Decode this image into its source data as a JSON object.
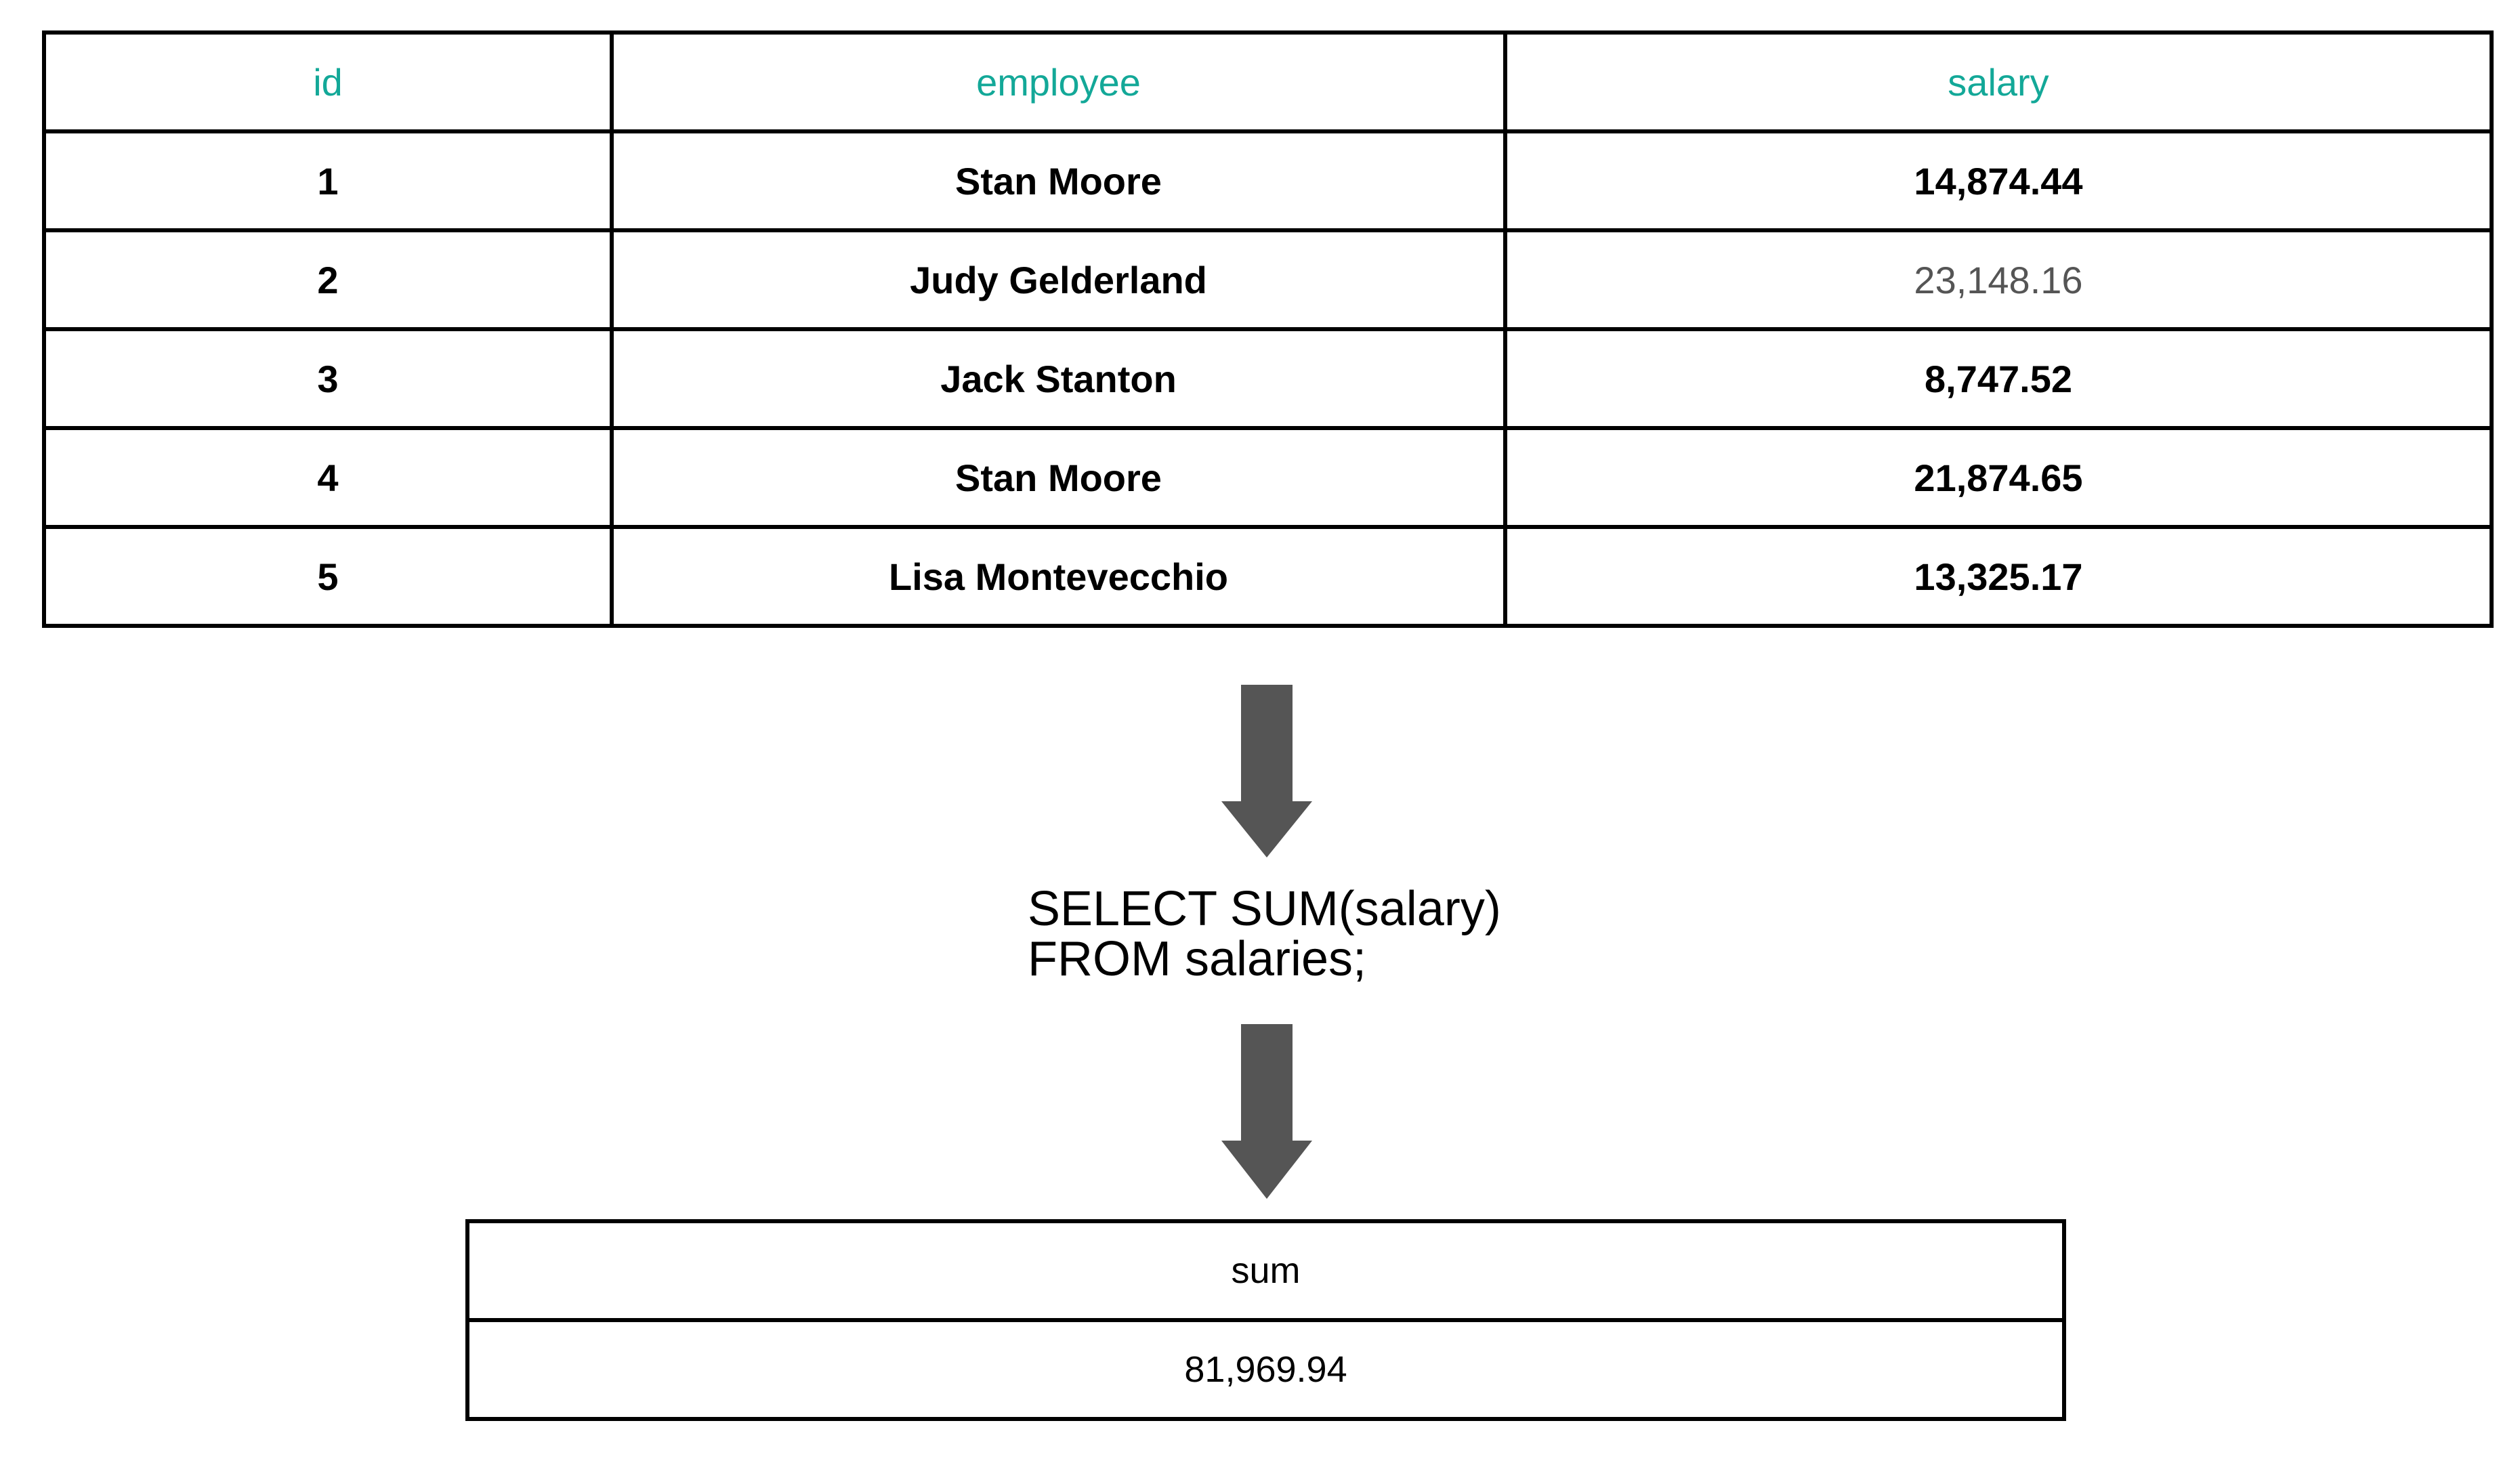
{
  "source_table": {
    "columns": [
      "id",
      "employee",
      "salary"
    ],
    "rows": [
      {
        "id": "1",
        "employee": "Stan Moore",
        "salary": "14,874.44"
      },
      {
        "id": "2",
        "employee": "Judy Gelderland",
        "salary": "23,148.16"
      },
      {
        "id": "3",
        "employee": "Jack Stanton",
        "salary": "8,747.52"
      },
      {
        "id": "4",
        "employee": "Stan Moore",
        "salary": "21,874.65"
      },
      {
        "id": "5",
        "employee": "Lisa Montevecchio",
        "salary": "13,325.17"
      }
    ]
  },
  "query": {
    "line1": "SELECT SUM(salary)",
    "line2": "FROM salaries;"
  },
  "result_table": {
    "column": "sum",
    "value": "81,969.94"
  },
  "colors": {
    "header": "#13a898",
    "arrow": "#555555",
    "border": "#000000"
  }
}
